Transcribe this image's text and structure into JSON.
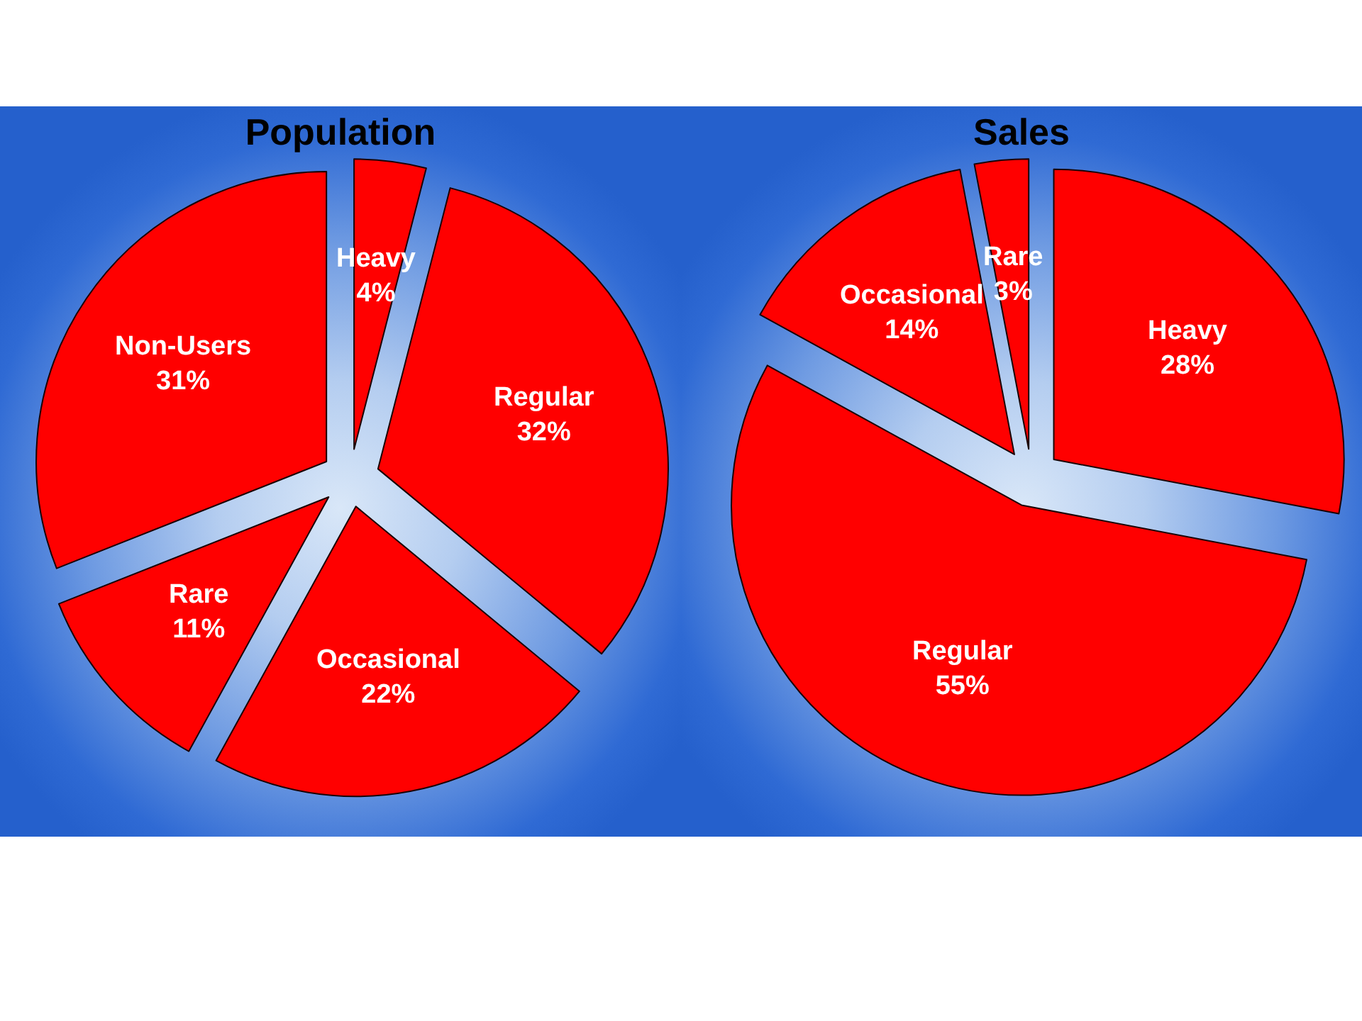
{
  "chart_data": [
    {
      "type": "pie",
      "title": "Population",
      "categories": [
        "Heavy",
        "Regular",
        "Occasional",
        "Rare",
        "Non-Users"
      ],
      "values": [
        4,
        32,
        22,
        11,
        31
      ],
      "colors": [
        "#ff0000",
        "#ff0000",
        "#ff0000",
        "#ff0000",
        "#ff0000"
      ],
      "value_labels": [
        "4%",
        "32%",
        "22%",
        "11%",
        "31%"
      ]
    },
    {
      "type": "pie",
      "title": "Sales",
      "categories": [
        "Heavy",
        "Regular",
        "Occasional",
        "Rare"
      ],
      "values": [
        28,
        55,
        14,
        3
      ],
      "colors": [
        "#ff0000",
        "#ff0000",
        "#ff0000",
        "#ff0000"
      ],
      "value_labels": [
        "28%",
        "55%",
        "14%",
        "3%"
      ]
    }
  ]
}
